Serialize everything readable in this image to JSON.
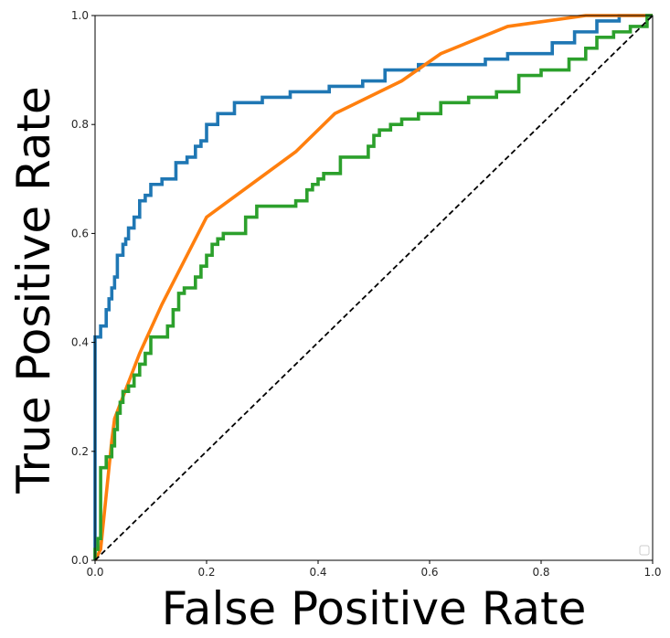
{
  "chart_data": {
    "type": "line",
    "title": "",
    "xlabel": "False Positive Rate",
    "ylabel": "True Positive Rate",
    "xlim": [
      0.0,
      1.0
    ],
    "ylim": [
      0.0,
      1.0
    ],
    "xticks": [
      "0.0",
      "0.2",
      "0.4",
      "0.6",
      "0.8",
      "1.0"
    ],
    "yticks": [
      "0.0",
      "0.2",
      "0.4",
      "0.6",
      "0.8",
      "1.0"
    ],
    "grid": false,
    "legend": {
      "placement": "lower-right",
      "entries": []
    },
    "reference_line": {
      "style": "dashed",
      "color": "#000000",
      "x": [
        0,
        1
      ],
      "y": [
        0,
        1
      ]
    },
    "series": [
      {
        "color": "#1f77b4",
        "step": true,
        "x": [
          0.0,
          0.0,
          0.01,
          0.01,
          0.02,
          0.02,
          0.025,
          0.025,
          0.03,
          0.03,
          0.035,
          0.035,
          0.04,
          0.04,
          0.05,
          0.05,
          0.055,
          0.055,
          0.06,
          0.06,
          0.07,
          0.07,
          0.08,
          0.08,
          0.09,
          0.09,
          0.1,
          0.1,
          0.12,
          0.12,
          0.145,
          0.145,
          0.165,
          0.165,
          0.18,
          0.18,
          0.19,
          0.19,
          0.2,
          0.2,
          0.22,
          0.22,
          0.25,
          0.25,
          0.3,
          0.3,
          0.35,
          0.35,
          0.42,
          0.42,
          0.48,
          0.48,
          0.52,
          0.52,
          0.58,
          0.58,
          0.7,
          0.7,
          0.74,
          0.74,
          0.82,
          0.82,
          0.86,
          0.86,
          0.9,
          0.9,
          0.94,
          0.94,
          1.0
        ],
        "y": [
          0.0,
          0.41,
          0.41,
          0.43,
          0.43,
          0.46,
          0.46,
          0.48,
          0.48,
          0.5,
          0.5,
          0.52,
          0.52,
          0.56,
          0.56,
          0.58,
          0.58,
          0.59,
          0.59,
          0.61,
          0.61,
          0.63,
          0.63,
          0.66,
          0.66,
          0.67,
          0.67,
          0.69,
          0.69,
          0.7,
          0.7,
          0.73,
          0.73,
          0.74,
          0.74,
          0.76,
          0.76,
          0.77,
          0.77,
          0.8,
          0.8,
          0.82,
          0.82,
          0.84,
          0.84,
          0.85,
          0.85,
          0.86,
          0.86,
          0.87,
          0.87,
          0.88,
          0.88,
          0.9,
          0.9,
          0.91,
          0.91,
          0.92,
          0.92,
          0.93,
          0.93,
          0.95,
          0.95,
          0.97,
          0.97,
          0.99,
          0.99,
          1.0,
          1.0
        ]
      },
      {
        "color": "#ff7f0e",
        "step": false,
        "x": [
          0.0,
          0.01,
          0.02,
          0.03,
          0.035,
          0.05,
          0.08,
          0.12,
          0.2,
          0.28,
          0.36,
          0.43,
          0.55,
          0.62,
          0.74,
          0.88,
          1.0
        ],
        "y": [
          0.0,
          0.02,
          0.12,
          0.22,
          0.26,
          0.3,
          0.38,
          0.47,
          0.63,
          0.69,
          0.75,
          0.82,
          0.88,
          0.93,
          0.98,
          1.0,
          1.0
        ]
      },
      {
        "color": "#2ca02c",
        "step": true,
        "x": [
          0.0,
          0.0,
          0.005,
          0.005,
          0.01,
          0.01,
          0.02,
          0.02,
          0.03,
          0.03,
          0.035,
          0.035,
          0.04,
          0.04,
          0.045,
          0.045,
          0.05,
          0.05,
          0.06,
          0.06,
          0.07,
          0.07,
          0.08,
          0.08,
          0.09,
          0.09,
          0.1,
          0.1,
          0.13,
          0.13,
          0.14,
          0.14,
          0.15,
          0.15,
          0.16,
          0.16,
          0.18,
          0.18,
          0.19,
          0.19,
          0.2,
          0.2,
          0.21,
          0.21,
          0.22,
          0.22,
          0.23,
          0.23,
          0.27,
          0.27,
          0.29,
          0.29,
          0.36,
          0.36,
          0.38,
          0.38,
          0.39,
          0.39,
          0.4,
          0.4,
          0.41,
          0.41,
          0.44,
          0.44,
          0.49,
          0.49,
          0.5,
          0.5,
          0.51,
          0.51,
          0.53,
          0.53,
          0.55,
          0.55,
          0.58,
          0.58,
          0.62,
          0.62,
          0.67,
          0.67,
          0.72,
          0.72,
          0.76,
          0.76,
          0.8,
          0.8,
          0.85,
          0.85,
          0.88,
          0.88,
          0.9,
          0.9,
          0.93,
          0.93,
          0.96,
          0.96,
          0.99,
          0.99,
          1.0
        ],
        "y": [
          0.0,
          0.02,
          0.02,
          0.04,
          0.04,
          0.17,
          0.17,
          0.19,
          0.19,
          0.21,
          0.21,
          0.24,
          0.24,
          0.27,
          0.27,
          0.29,
          0.29,
          0.31,
          0.31,
          0.32,
          0.32,
          0.34,
          0.34,
          0.36,
          0.36,
          0.38,
          0.38,
          0.41,
          0.41,
          0.43,
          0.43,
          0.46,
          0.46,
          0.49,
          0.49,
          0.5,
          0.5,
          0.52,
          0.52,
          0.54,
          0.54,
          0.56,
          0.56,
          0.58,
          0.58,
          0.59,
          0.59,
          0.6,
          0.6,
          0.63,
          0.63,
          0.65,
          0.65,
          0.66,
          0.66,
          0.68,
          0.68,
          0.69,
          0.69,
          0.7,
          0.7,
          0.71,
          0.71,
          0.74,
          0.74,
          0.76,
          0.76,
          0.78,
          0.78,
          0.79,
          0.79,
          0.8,
          0.8,
          0.81,
          0.81,
          0.82,
          0.82,
          0.84,
          0.84,
          0.85,
          0.85,
          0.86,
          0.86,
          0.89,
          0.89,
          0.9,
          0.9,
          0.92,
          0.92,
          0.94,
          0.94,
          0.96,
          0.96,
          0.97,
          0.97,
          0.98,
          0.98,
          1.0,
          1.0
        ]
      }
    ]
  }
}
